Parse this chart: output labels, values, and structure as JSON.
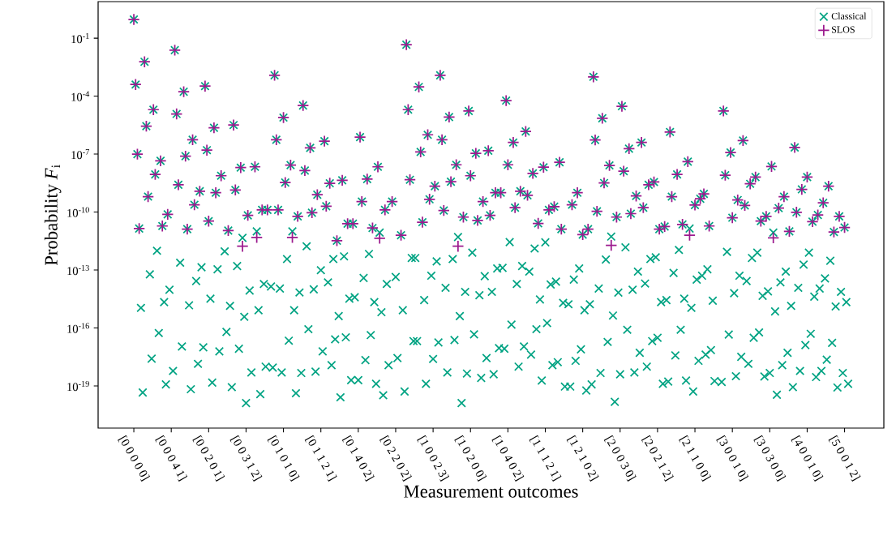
{
  "chart_data": {
    "type": "scatter",
    "xlabel": "Measurement outcomes",
    "ylabel": "Probability *F*$_{i}$",
    "log": "y",
    "legend": "top right",
    "categories": [
      "[0 0 0 0 0]",
      null,
      null,
      null,
      null,
      null,
      null,
      null,
      null,
      null,
      null,
      null,
      null,
      null,
      null,
      null,
      null,
      null,
      null,
      null,
      null,
      "[0 0 0 4 1]",
      null,
      null,
      null,
      null,
      null,
      null,
      null,
      null,
      null,
      null,
      null,
      null,
      null,
      null,
      null,
      null,
      null,
      null,
      null,
      null,
      "[0 0 2 0 1]",
      null,
      null,
      null,
      null,
      null,
      null,
      null,
      null,
      null,
      null,
      null,
      null,
      null,
      null,
      null,
      null,
      null,
      null,
      null,
      null,
      "[0 0 3 1 2]",
      null,
      null,
      null,
      null,
      null,
      null,
      null,
      null,
      null,
      null,
      null,
      null,
      null,
      null,
      null,
      null,
      null,
      null,
      null,
      null,
      "[0 1 0 1 0]",
      null,
      null,
      null,
      null,
      null,
      null,
      null,
      null,
      null,
      null,
      null,
      null,
      null,
      null,
      null,
      null,
      null,
      null,
      null,
      null,
      "[0 1 1 2 1]",
      null,
      null,
      null,
      null,
      null,
      null,
      null,
      null,
      null,
      null,
      null,
      null,
      null,
      null,
      null,
      null,
      null,
      null,
      null,
      null,
      "[0 1 4 0 2]",
      null,
      null,
      null,
      null,
      null,
      null,
      null,
      null,
      null,
      null,
      null,
      null,
      null,
      null,
      null,
      null,
      null,
      null,
      null,
      null,
      "[0 2 2 0 2]",
      null,
      null,
      null,
      null,
      null,
      null,
      null,
      null,
      null,
      null,
      null,
      null,
      null,
      null,
      null,
      null,
      null,
      null,
      null,
      null,
      "[1 0 0 2 3]",
      null,
      null,
      null,
      null,
      null,
      null,
      null,
      null,
      null,
      null,
      null,
      null,
      null,
      null,
      null,
      null,
      null,
      null,
      null,
      null,
      "[1 0 2 0 0]",
      null,
      null,
      null,
      null,
      null,
      null,
      null,
      null,
      null,
      null,
      null,
      null,
      null,
      null,
      null,
      null,
      null,
      null,
      null,
      null,
      "[1 0 4 0 2]",
      null,
      null,
      null,
      null,
      null,
      null,
      null,
      null,
      null,
      null,
      null,
      null,
      null,
      null,
      null,
      null,
      null,
      null,
      null,
      null,
      "[1 1 1 2 1]",
      null,
      null,
      null,
      null,
      null,
      null,
      null,
      null,
      null,
      null,
      null,
      null,
      null,
      null,
      null,
      null,
      null,
      null,
      null,
      null,
      "[1 2 1 0 2]",
      null,
      null,
      null,
      null,
      null,
      null,
      null,
      null,
      null,
      null,
      null,
      null,
      null,
      null,
      null,
      null,
      null,
      null,
      null,
      null,
      "[2 0 0 3 0]",
      null,
      null,
      null,
      null,
      null,
      null,
      null,
      null,
      null,
      null,
      null,
      null,
      null,
      null,
      null,
      null,
      null,
      null,
      null,
      null,
      "[2 0 2 1 2]",
      null,
      null,
      null,
      null,
      null,
      null,
      null,
      null,
      null,
      null,
      null,
      null,
      null,
      null,
      null,
      null,
      null,
      null,
      null,
      null,
      "[2 1 1 0 0]",
      null,
      null,
      null,
      null,
      null,
      null,
      null,
      null,
      null,
      null,
      null,
      null,
      null,
      null,
      null,
      null,
      null,
      null,
      null,
      null,
      "[3 0 0 1 0]",
      null,
      null,
      null,
      null,
      null,
      null,
      null,
      null,
      null,
      null,
      null,
      null,
      null,
      null,
      null,
      null,
      null,
      null,
      null,
      null,
      "[3 0 3 0 0]",
      null,
      null,
      null,
      null,
      null,
      null,
      null,
      null,
      null,
      null,
      null,
      null,
      null,
      null,
      null,
      null,
      null,
      null,
      null,
      null,
      "[4 0 0 1 0]",
      null,
      null,
      null,
      null,
      null,
      null,
      null,
      null,
      null,
      null,
      null,
      null,
      null,
      null,
      null,
      null,
      null,
      null,
      null,
      null,
      "[5 0 0 1 2]",
      null,
      null
    ],
    "ylim": [
      6.6e-22,
      7.8
    ],
    "yticks": [
      {
        "value": 0.1,
        "label": "10$^{-1}$"
      },
      {
        "value": 0.0001,
        "label": "10$^{-4}$"
      },
      {
        "value": 1e-07,
        "label": "10$^{-7}$"
      },
      {
        "value": 1e-10,
        "label": "10$^{-10}$"
      },
      {
        "value": 1e-13,
        "label": "10$^{-13}$"
      },
      {
        "value": 1e-16,
        "label": "10$^{-16}$"
      },
      {
        "value": 1e-19,
        "label": "10$^{-19}$"
      }
    ],
    "series": [
      {
        "name": "Classical",
        "color": "#00a383",
        "marker": "cross",
        "values": [
          0.93,
          0.0004,
          1e-07,
          1.4e-11,
          1.1e-15,
          4.6e-20,
          0.006,
          2.8e-06,
          6.3e-10,
          6e-14,
          2.6e-18,
          2e-05,
          8.9e-09,
          1e-12,
          5.5e-17,
          4.5e-08,
          1.9e-11,
          2.2e-15,
          1.2e-19,
          7.6e-11,
          9.5e-15,
          null,
          6e-19,
          0.024,
          1.2e-05,
          2.6e-09,
          2.4e-13,
          1.1e-17,
          0.00017,
          7.8e-08,
          1.3e-11,
          1.5e-15,
          6.8e-20,
          5.5e-07,
          2.4e-10,
          2.7e-14,
          1.4e-18,
          1.2e-09,
          1.4e-13,
          1e-17,
          0.00033,
          1.6e-07,
          3.4e-11,
          3.3e-15,
          1.5e-19,
          2.3e-06,
          1e-09,
          1.1e-13,
          6.2e-18,
          7.6e-09,
          null,
          9.3e-13,
          6.3e-17,
          1.1e-11,
          1.4e-15,
          8.7e-20,
          3.2e-06,
          1.4e-09,
          1.6e-13,
          8.5e-18,
          2e-08,
          4.6e-12,
          3.8e-16,
          1.3e-20,
          6.8e-11,
          8.7e-15,
          5e-19,
          null,
          2.2e-08,
          1e-11,
          8.3e-16,
          3.8e-20,
          1.3e-10,
          1.9e-14,
          1e-18,
          1.3e-10,
          null,
          1.4e-14,
          8.9e-19,
          0.0012,
          5.5e-07,
          1.3e-10,
          1.1e-14,
          5e-19,
          7.8e-06,
          3.4e-09,
          3.7e-13,
          2.2e-17,
          2.7e-08,
          1e-11,
          8.3e-16,
          4.2e-20,
          6e-11,
          6.9e-15,
          4.7e-19,
          3.3e-05,
          1.4e-08,
          1.7e-12,
          8.7e-17,
          2.1e-07,
          9.3e-11,
          1e-14,
          5.5e-19,
          7.9e-10,
          null,
          9.8e-14,
          6.2e-18,
          4.7e-07,
          2e-10,
          2.3e-14,
          3.1e-09,
          1.2e-18,
          3.7e-13,
          2.6e-17,
          3.3e-12,
          4.1e-16,
          2.6e-20,
          4.4e-09,
          5.1e-13,
          3.3e-17,
          2.5e-11,
          3.3e-15,
          2e-19,
          2.5e-11,
          3.9e-15,
          null,
          2e-19,
          7.6e-07,
          3.5e-10,
          3.9e-14,
          2.2e-18,
          5.1e-09,
          6.8e-13,
          4.3e-17,
          1.5e-11,
          2.2e-15,
          1.3e-19,
          2.2e-08,
          8.7e-12,
          6.6e-16,
          3.3e-20,
          1.3e-10,
          1.9e-14,
          1.2e-18,
          null,
          3.5e-10,
          null,
          4.4e-14,
          2.8e-18,
          null,
          6.3e-12,
          8.3e-16,
          5.2e-20,
          0.046,
          2e-05,
          4.7e-09,
          4.2e-13,
          2.1e-17,
          4.2e-13,
          2.1e-17,
          0.0003,
          1.3e-07,
          3e-11,
          2.8e-15,
          1.3e-19,
          1e-06,
          4.6e-10,
          5.1e-14,
          2.5e-18,
          2.2e-09,
          2.8e-13,
          1.8e-17,
          0.0012,
          5.5e-07,
          1.2e-10,
          1.2e-14,
          5e-19,
          8.3e-06,
          3.7e-09,
          3.7e-13,
          2.4e-17,
          2.8e-08,
          5.1e-12,
          4.1e-16,
          1.3e-20,
          5.5e-11,
          7.4e-15,
          4.4e-19,
          1.7e-05,
          7.6e-09,
          7.9e-13,
          4.7e-17,
          1.1e-07,
          3.7e-11,
          5e-15,
          2.6e-19,
          3.5e-10,
          4.8e-14,
          2.8e-18,
          1.5e-07,
          6.8e-11,
          7.4e-15,
          4e-19,
          1e-09,
          1.2e-13,
          9.1e-18,
          1e-09,
          1.3e-13,
          8.5e-18,
          5.9e-05,
          2.8e-08,
          2.8e-12,
          1.5e-16,
          4e-07,
          1.7e-10,
          1.9e-14,
          1e-18,
          1.2e-09,
          1.6e-13,
          1.1e-17,
          1.5e-06,
          7.4e-10,
          8.3e-14,
          4.2e-18,
          1e-08,
          1.3e-12,
          8.7e-17,
          2.6e-11,
          3e-15,
          1.9e-19,
          2.1e-08,
          2.7e-12,
          1.8e-16,
          1.3e-10,
          1.8e-14,
          1.2e-18,
          1.9e-10,
          2.5e-14,
          1.7e-18,
          3.8e-08,
          1.3e-11,
          2e-15,
          9.3e-20,
          null,
          1.7e-15,
          9.3e-20,
          2.4e-10,
          3.2e-14,
          2e-18,
          1e-09,
          1.2e-13,
          7.9e-18,
          6.8e-12,
          8.3e-16,
          5.8e-20,
          1.3e-11,
          1.7e-15,
          1.2e-19,
          0.001,
          5.4e-07,
          1.1e-10,
          1.1e-14,
          4.7e-19,
          7.2e-06,
          3.2e-09,
          3.5e-13,
          1.9e-17,
          2.6e-08,
          5.4e-12,
          4.4e-16,
          1.5e-20,
          5.5e-11,
          6.8e-15,
          4e-19,
          3e-05,
          1.3e-08,
          1.5e-12,
          8.1e-17,
          1.9e-07,
          8.3e-11,
          9.5e-15,
          5e-19,
          6.8e-10,
          8.3e-14,
          5.2e-18,
          4e-07,
          1.7e-10,
          2e-14,
          1e-18,
          2.6e-09,
          3.7e-13,
          2.1e-17,
          3.6e-09,
          4.6e-13,
          3.1e-17,
          1.3e-11,
          2.2e-15,
          1.3e-19,
          1.8e-11,
          2.8e-15,
          1.7e-19,
          1.4e-06,
          6.3e-10,
          7.1e-14,
          3.8e-18,
          8.9e-09,
          1.1e-12,
          8.1e-17,
          2.3e-11,
          3.3e-15,
          1.9e-19,
          4.1e-08,
          1.4e-11,
          1.1e-15,
          5.2e-20,
          2.3e-10,
          3.2e-14,
          2e-18,
          4.9e-10,
          5.1e-14,
          8.7e-10,
          4.2e-18,
          1.1e-13,
          1.9e-11,
          7.2e-18,
          2.6e-15,
          1.8e-19,
          null,
          null,
          null,
          1.6e-19,
          1.7e-05,
          8.1e-09,
          8.7e-13,
          4.6e-17,
          1.2e-07,
          5.1e-11,
          6.3e-15,
          3.2e-19,
          4.2e-10,
          5.1e-14,
          3.2e-18,
          5e-07,
          2.2e-10,
          2.7e-14,
          1.4e-18,
          2.9e-09,
          4.2e-13,
          3.1e-17,
          6.5e-09,
          7.9e-13,
          5.9e-17,
          3.4e-11,
          4.6e-15,
          3.1e-19,
          6e-11,
          7.9e-15,
          4.7e-19,
          2.3e-08,
          8.7e-12,
          7.2e-16,
          3.5e-20,
          1.6e-10,
          2.3e-14,
          1.2e-18,
          6.3e-10,
          8.3e-14,
          5.2e-18,
          1e-11,
          1.4e-15,
          8.7e-20,
          2.2e-07,
          9.8e-11,
          1.2e-14,
          6e-19,
          1.5e-09,
          1.9e-13,
          1.3e-17,
          6.5e-09,
          7.9e-13,
          5e-17,
          3.2e-11,
          4.2e-15,
          2.9e-19,
          7.1e-11,
          1.1e-14,
          6e-19,
          3e-10,
          3.7e-14,
          2.3e-18,
          2.2e-09,
          3e-13,
          1.7e-17,
          9.3e-12,
          1.3e-15,
          8.3e-20,
          6e-11,
          7.4e-15,
          4.7e-19,
          1.6e-11,
          2.2e-15,
          1.3e-19
        ]
      },
      {
        "name": "SLOS",
        "color": "#9c1a8e",
        "marker": "plus",
        "values": [
          0.93,
          0.0004,
          1e-07,
          1.4e-11,
          null,
          null,
          0.006,
          2.8e-06,
          6.3e-10,
          null,
          null,
          2e-05,
          8.9e-09,
          null,
          null,
          4.5e-08,
          1.9e-11,
          null,
          null,
          7.6e-11,
          null,
          null,
          null,
          0.024,
          1.2e-05,
          2.6e-09,
          null,
          null,
          0.00017,
          7.8e-08,
          1.3e-11,
          null,
          null,
          5.5e-07,
          2.4e-10,
          null,
          null,
          1.2e-09,
          null,
          null,
          0.00033,
          1.6e-07,
          3.4e-11,
          null,
          null,
          2.3e-06,
          1e-09,
          null,
          null,
          7.6e-09,
          null,
          null,
          null,
          1.1e-11,
          null,
          null,
          3.2e-06,
          1.4e-09,
          null,
          null,
          2e-08,
          1.7e-12,
          null,
          null,
          6.8e-11,
          null,
          null,
          null,
          2.2e-08,
          4.9e-12,
          null,
          null,
          1.3e-10,
          null,
          null,
          1.3e-10,
          null,
          null,
          null,
          0.0012,
          5.5e-07,
          1.3e-10,
          null,
          null,
          7.8e-06,
          3.4e-09,
          null,
          null,
          2.7e-08,
          4.9e-12,
          null,
          null,
          6e-11,
          null,
          null,
          3.3e-05,
          1.4e-08,
          null,
          null,
          2.1e-07,
          9.3e-11,
          null,
          null,
          7.9e-10,
          null,
          null,
          null,
          4.7e-07,
          2e-10,
          null,
          3.1e-09,
          null,
          null,
          null,
          3.3e-12,
          null,
          null,
          4.4e-09,
          null,
          null,
          2.5e-11,
          null,
          null,
          2.5e-11,
          null,
          null,
          null,
          7.6e-07,
          3.5e-10,
          null,
          null,
          5.1e-09,
          null,
          null,
          1.5e-11,
          null,
          null,
          2.2e-08,
          4.4e-12,
          null,
          null,
          1.3e-10,
          null,
          null,
          null,
          3.5e-10,
          null,
          null,
          null,
          null,
          6.3e-12,
          null,
          null,
          0.046,
          2e-05,
          4.7e-09,
          null,
          null,
          null,
          null,
          0.0003,
          1.3e-07,
          3e-11,
          null,
          null,
          1e-06,
          4.6e-10,
          null,
          null,
          2.2e-09,
          null,
          null,
          0.0012,
          5.5e-07,
          1.2e-10,
          null,
          null,
          8.3e-06,
          3.7e-09,
          null,
          null,
          2.8e-08,
          1.7e-12,
          null,
          null,
          5.5e-11,
          null,
          null,
          1.7e-05,
          7.6e-09,
          null,
          null,
          1.1e-07,
          3.7e-11,
          null,
          null,
          3.5e-10,
          null,
          null,
          1.5e-07,
          6.8e-11,
          null,
          null,
          1e-09,
          null,
          null,
          1e-09,
          null,
          null,
          5.9e-05,
          2.8e-08,
          null,
          null,
          4e-07,
          1.7e-10,
          null,
          null,
          1.2e-09,
          null,
          null,
          1.5e-06,
          7.4e-10,
          null,
          null,
          1e-08,
          null,
          null,
          2.6e-11,
          null,
          null,
          2.1e-08,
          null,
          null,
          1.3e-10,
          null,
          null,
          1.9e-10,
          null,
          null,
          3.8e-08,
          1.3e-11,
          null,
          null,
          null,
          null,
          null,
          2.4e-10,
          null,
          null,
          1e-09,
          null,
          null,
          6.8e-12,
          null,
          null,
          1.3e-11,
          null,
          null,
          0.001,
          5.4e-07,
          1.1e-10,
          null,
          null,
          7.2e-06,
          3.2e-09,
          null,
          null,
          2.6e-08,
          1.9e-12,
          null,
          null,
          5.5e-11,
          null,
          null,
          3e-05,
          1.3e-08,
          null,
          null,
          1.9e-07,
          8.3e-11,
          null,
          null,
          6.8e-10,
          null,
          null,
          4e-07,
          1.7e-10,
          null,
          null,
          2.6e-09,
          null,
          null,
          3.6e-09,
          null,
          null,
          1.3e-11,
          null,
          null,
          1.8e-11,
          null,
          null,
          1.4e-06,
          6.3e-10,
          null,
          null,
          8.9e-09,
          null,
          null,
          2.3e-11,
          null,
          null,
          4.1e-08,
          6.3e-12,
          null,
          null,
          2.3e-10,
          null,
          null,
          4.9e-10,
          null,
          8.7e-10,
          null,
          null,
          1.9e-11,
          null,
          null,
          null,
          null,
          null,
          null,
          null,
          1.7e-05,
          8.1e-09,
          null,
          null,
          1.2e-07,
          5.1e-11,
          null,
          null,
          4.2e-10,
          null,
          null,
          5e-07,
          2.2e-10,
          null,
          null,
          2.9e-09,
          null,
          null,
          6.5e-09,
          null,
          null,
          3.4e-11,
          null,
          null,
          6e-11,
          null,
          null,
          2.3e-08,
          4.6e-12,
          null,
          null,
          1.6e-10,
          null,
          null,
          6.3e-10,
          null,
          null,
          1e-11,
          null,
          null,
          2.2e-07,
          9.8e-11,
          null,
          null,
          1.5e-09,
          null,
          null,
          6.5e-09,
          null,
          null,
          3.2e-11,
          null,
          null,
          7.1e-11,
          null,
          null,
          3e-10,
          null,
          null,
          2.2e-09,
          null,
          null,
          9.3e-12,
          null,
          null,
          6e-11,
          null,
          null,
          1.6e-11,
          null,
          null
        ]
      }
    ]
  }
}
